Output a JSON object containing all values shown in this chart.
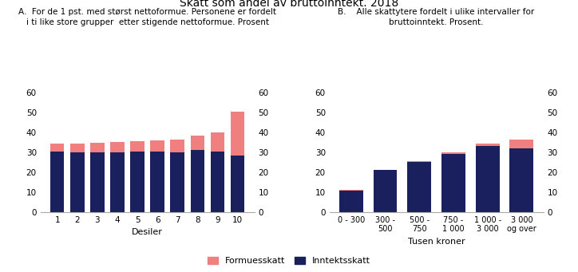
{
  "title": "Skatt som andel av bruttoinntekt. 2018",
  "subtitle_a": "A.  For de 1 pst. med størst nettoformue. Personene er fordelt\ni ti like store grupper  etter stigende nettoformue. Prosent",
  "subtitle_b": "B.    Alle skattytere fordelt i ulike intervaller for\nbruttoinntekt. Prosent.",
  "panel_a": {
    "xlabel": "Desiler",
    "categories": [
      "1",
      "2",
      "3",
      "4",
      "5",
      "6",
      "7",
      "8",
      "9",
      "10"
    ],
    "inntektsskatt": [
      30.2,
      30.0,
      30.1,
      30.1,
      30.2,
      30.2,
      30.1,
      31.0,
      30.2,
      28.5
    ],
    "formuesskatt": [
      4.0,
      4.2,
      4.8,
      5.0,
      5.3,
      5.8,
      6.2,
      7.2,
      9.8,
      22.0
    ]
  },
  "panel_b": {
    "xlabel": "Tusen kroner",
    "categories": [
      "0 - 300",
      "300 -\n500",
      "500 -\n750",
      "750 -\n1 000",
      "1 000 -\n3 000",
      "3 000\nog over"
    ],
    "inntektsskatt": [
      10.8,
      21.0,
      25.0,
      29.0,
      33.0,
      32.0
    ],
    "formuesskatt": [
      0.5,
      0.2,
      0.5,
      1.0,
      1.5,
      4.5
    ]
  },
  "color_inntektsskatt": "#1a1f5e",
  "color_formuesskatt": "#f08080",
  "ylim": [
    0,
    60
  ],
  "yticks": [
    0,
    10,
    20,
    30,
    40,
    50,
    60
  ],
  "legend_formuesskatt": "Formuesskatt",
  "legend_inntektsskatt": "Inntektsskatt",
  "background_color": "#ffffff"
}
